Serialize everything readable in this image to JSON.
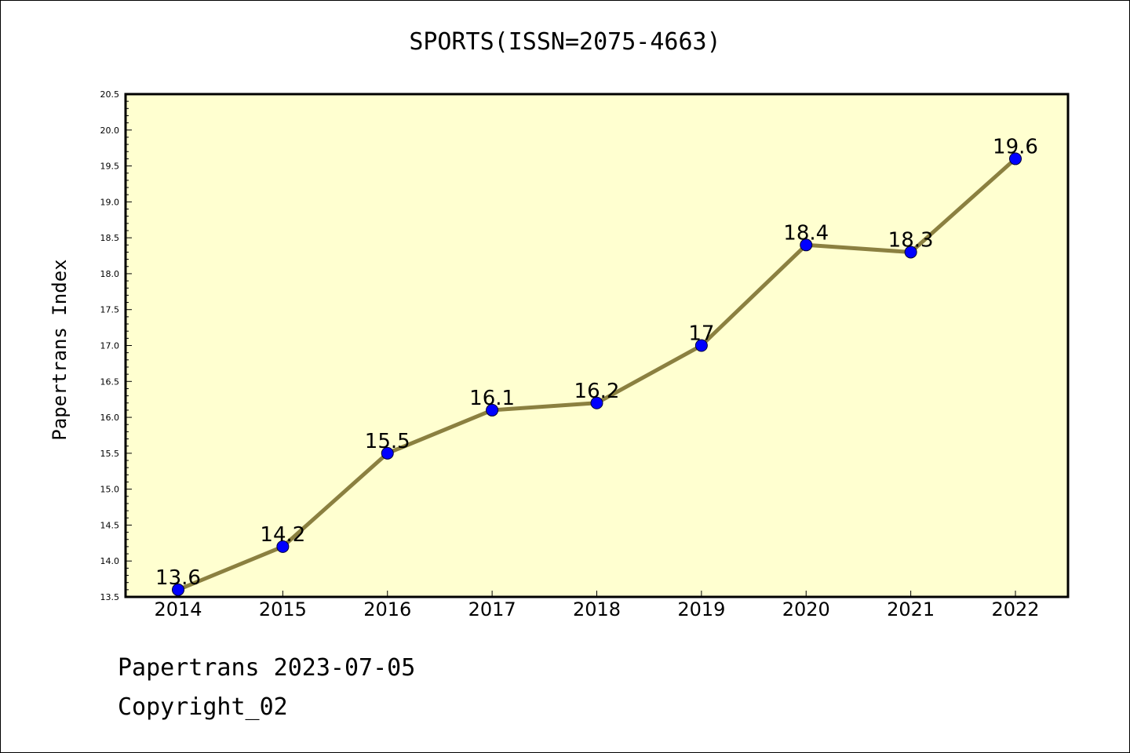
{
  "chart_data": {
    "type": "line",
    "title": "SPORTS(ISSN=2075-4663)",
    "xlabel": "",
    "ylabel": "Papertrans Index",
    "categories": [
      "2014",
      "2015",
      "2016",
      "2017",
      "2018",
      "2019",
      "2020",
      "2021",
      "2022"
    ],
    "values": [
      13.6,
      14.2,
      15.5,
      16.1,
      16.2,
      17,
      18.4,
      18.3,
      19.6
    ],
    "data_labels": [
      "13.6",
      "14.2",
      "15.5",
      "16.1",
      "16.2",
      "17",
      "18.4",
      "18.3",
      "19.6"
    ],
    "ylim": [
      13.5,
      20.5
    ],
    "yticks": [
      "13.5",
      "14.0",
      "14.5",
      "15.0",
      "15.5",
      "16.0",
      "16.5",
      "17.0",
      "17.5",
      "18.0",
      "18.5",
      "19.0",
      "19.5",
      "20.0",
      "20.5"
    ],
    "grid": false,
    "colors": {
      "plot_background": "#ffffd0",
      "line": "#8b8040",
      "marker": "#0000ff"
    }
  },
  "footer": {
    "line1": "Papertrans 2023-07-05",
    "line2": "Copyright_02"
  }
}
